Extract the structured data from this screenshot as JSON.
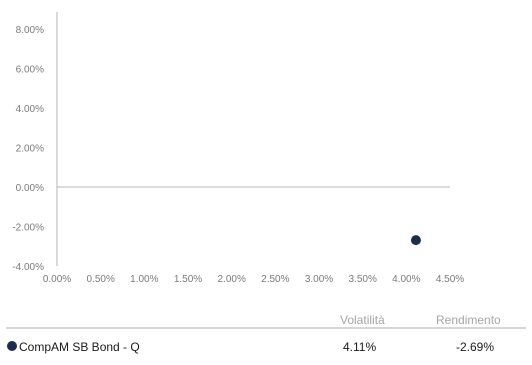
{
  "chart_data": {
    "type": "scatter",
    "title": "",
    "xlabel": "",
    "ylabel": "",
    "xlim": [
      0,
      4.5
    ],
    "ylim": [
      -4,
      9
    ],
    "x_ticks": [
      "0.00%",
      "0.50%",
      "1.00%",
      "1.50%",
      "2.00%",
      "2.50%",
      "3.00%",
      "3.50%",
      "4.00%",
      "4.50%"
    ],
    "x_tick_values": [
      0,
      0.5,
      1,
      1.5,
      2,
      2.5,
      3,
      3.5,
      4,
      4.5
    ],
    "y_ticks": [
      "8.00%",
      "6.00%",
      "4.00%",
      "2.00%",
      "0.00%",
      "-2.00%",
      "-4.00%"
    ],
    "y_tick_values": [
      8,
      6,
      4,
      2,
      0,
      -2,
      -4
    ],
    "grid": false,
    "series": [
      {
        "name": "CompAM SB Bond - Q",
        "color": "#1b2e4f",
        "points": [
          {
            "x": 4.11,
            "y": -2.69
          }
        ]
      }
    ]
  },
  "table": {
    "headers": {
      "volatility": "Volatilità",
      "return": "Rendimento"
    },
    "rows": [
      {
        "name": "CompAM SB Bond - Q",
        "volatility": "4.11%",
        "return": "-2.69%",
        "color": "#1b2e4f"
      }
    ]
  }
}
